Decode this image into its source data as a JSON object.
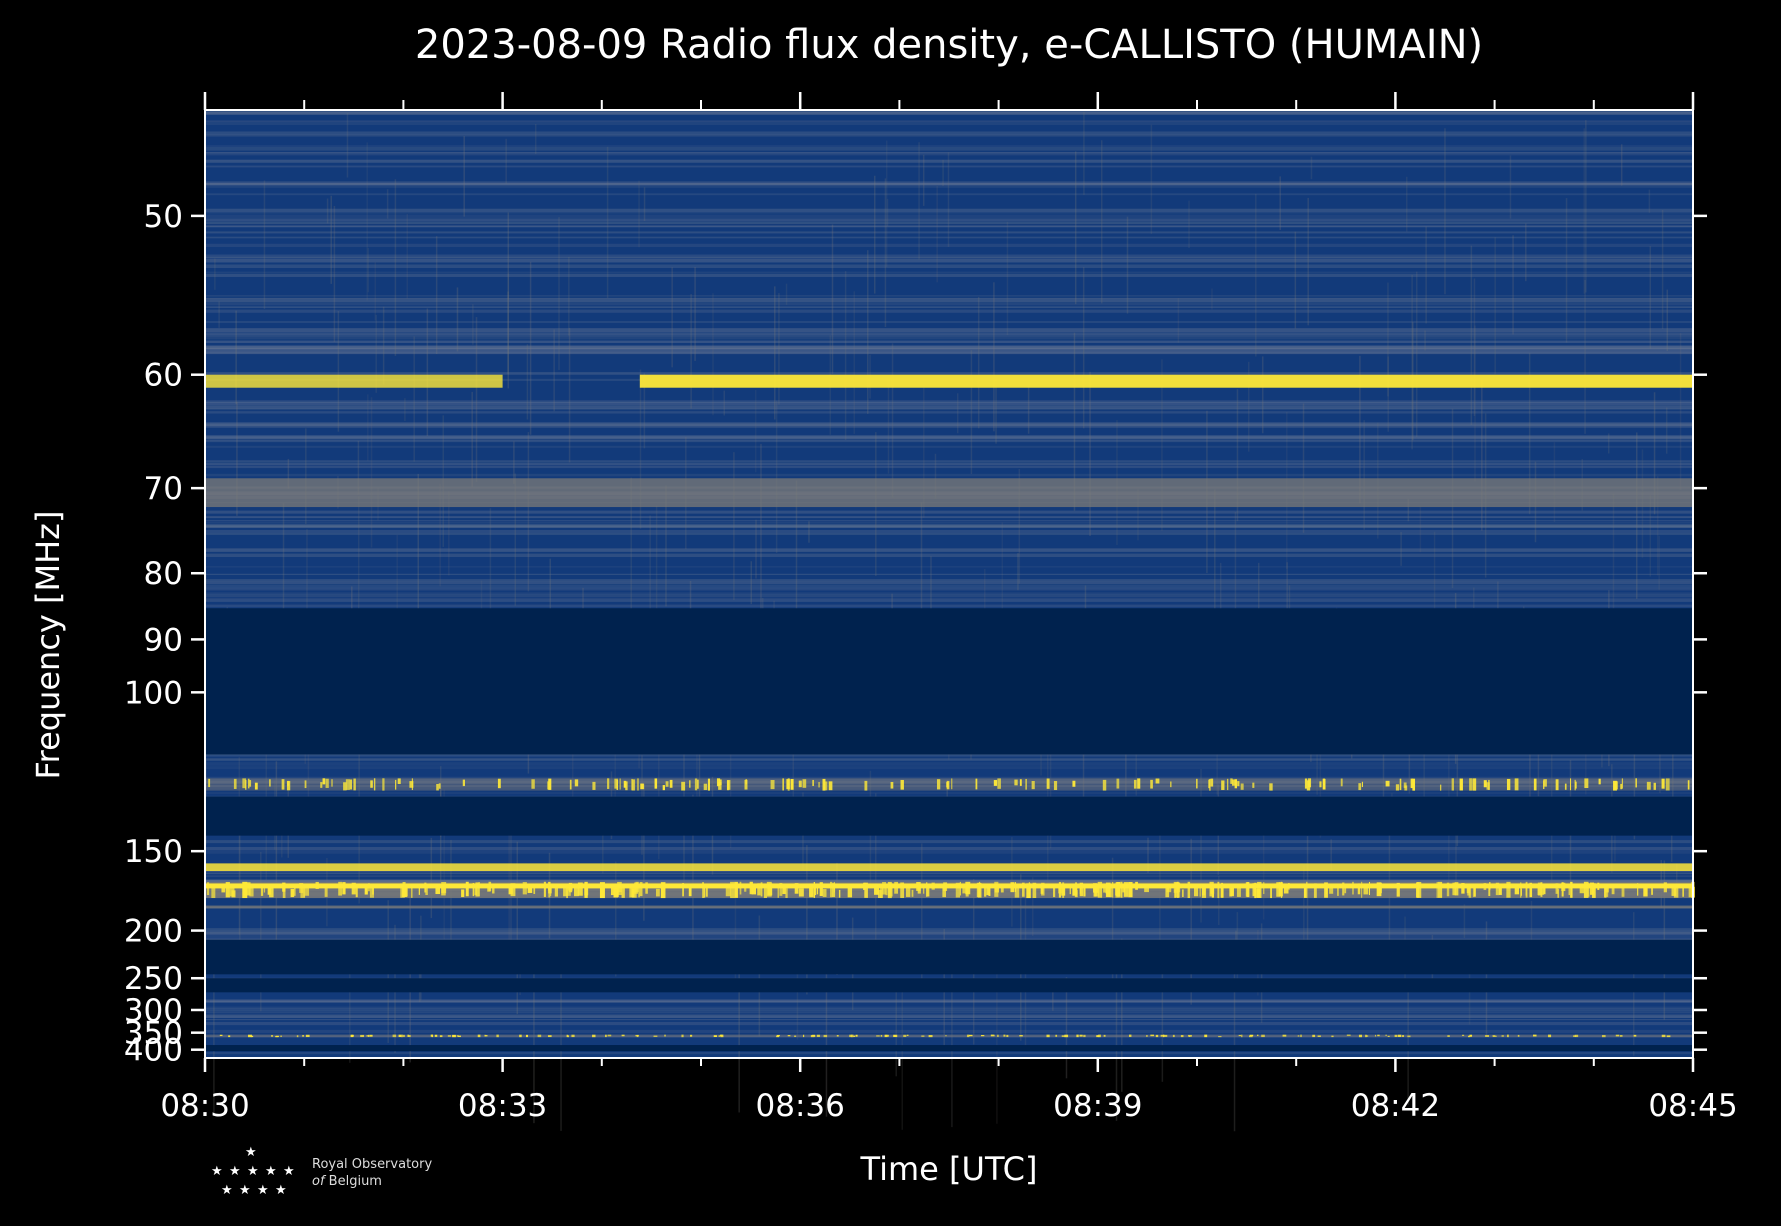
{
  "chart_data": {
    "type": "heatmap",
    "title": "2023-08-09 Radio flux density, e-CALLISTO (HUMAIN)",
    "xlabel": "Time [UTC]",
    "ylabel": "Frequency [MHz]",
    "x_ticks": [
      "08:30",
      "08:33",
      "08:36",
      "08:39",
      "08:42",
      "08:45"
    ],
    "y_ticks": [
      50,
      60,
      70,
      80,
      90,
      100,
      150,
      200,
      250,
      300,
      350,
      400
    ],
    "ylim": [
      45,
      430
    ],
    "y_scale": "reciprocal",
    "xlim": [
      "08:30",
      "08:45"
    ],
    "colormap": "cividis",
    "colors": {
      "background": "#000000",
      "low": "#00224e",
      "mid": "#7c7b78",
      "high": "#fee838"
    },
    "bands": [
      {
        "freq_mhz": [
          85,
          115
        ],
        "level": "blank"
      },
      {
        "freq_mhz": [
          128,
          143
        ],
        "level": "blank"
      },
      {
        "freq_mhz": [
          208,
          245
        ],
        "level": "blank"
      },
      {
        "freq_mhz": [
          250,
          270
        ],
        "level": "blank"
      },
      {
        "freq_mhz": [
          385,
          405
        ],
        "level": "blank"
      },
      {
        "freq_mhz": [
          60,
          61
        ],
        "level": "strong",
        "gap_time": [
          "08:33",
          "08:34:23"
        ]
      },
      {
        "freq_mhz": [
          69,
          72
        ],
        "level": "medium"
      },
      {
        "freq_mhz": [
          122,
          126
        ],
        "level": "bursty"
      },
      {
        "freq_mhz": [
          156,
          160
        ],
        "level": "strong"
      },
      {
        "freq_mhz": [
          166,
          176
        ],
        "level": "strong-bursty"
      },
      {
        "freq_mhz": [
          181,
          183
        ],
        "level": "medium"
      },
      {
        "freq_mhz": [
          355,
          362
        ],
        "level": "bursty"
      }
    ],
    "logo": {
      "line1": "Royal Observatory",
      "line2": "Belgium",
      "prefix": "of"
    }
  }
}
